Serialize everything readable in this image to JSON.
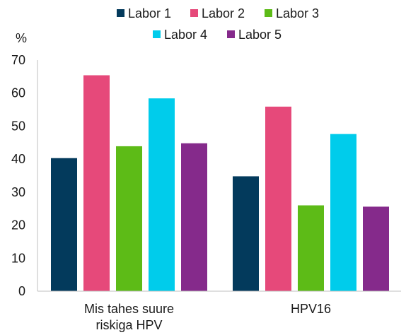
{
  "chart_data": {
    "type": "bar",
    "title": "",
    "xlabel": "",
    "ylabel": "%",
    "ylim": [
      0,
      70
    ],
    "yticks": [
      "0",
      "10",
      "20",
      "30",
      "40",
      "50",
      "60",
      "70"
    ],
    "grid": false,
    "legend_position": "top",
    "categories": [
      [
        "Mis tahes suure",
        "riskiga HPV"
      ],
      [
        "HPV16"
      ]
    ],
    "series": [
      {
        "name": "Labor 1",
        "color": "#033A5C",
        "values": [
          40.3,
          34.8
        ]
      },
      {
        "name": "Labor 2",
        "color": "#E6497A",
        "values": [
          65.4,
          55.9
        ]
      },
      {
        "name": "Labor 3",
        "color": "#5DBB17",
        "values": [
          43.9,
          26.0
        ]
      },
      {
        "name": "Labor 4",
        "color": "#00CCEB",
        "values": [
          58.4,
          47.6
        ]
      },
      {
        "name": "Labor 5",
        "color": "#852A8B",
        "values": [
          44.8,
          25.6
        ]
      }
    ]
  }
}
